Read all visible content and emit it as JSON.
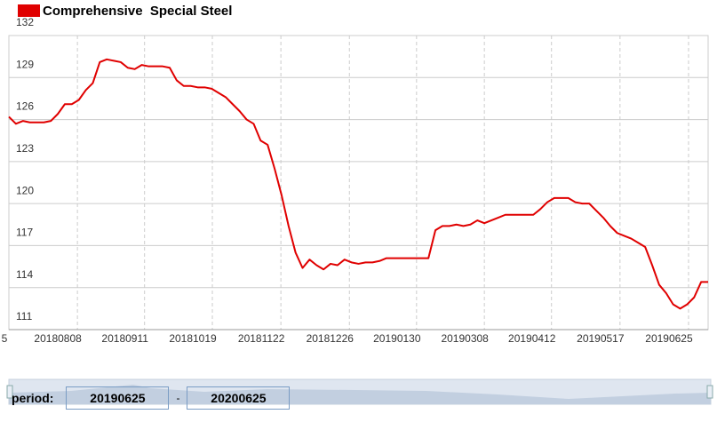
{
  "chart_data": {
    "type": "line",
    "series": [
      {
        "name": "Comprehensive  Special Steel",
        "color": "#e00000",
        "values": [
          126.2,
          125.7,
          125.9,
          125.8,
          125.8,
          125.8,
          125.9,
          126.4,
          127.1,
          127.1,
          127.4,
          128.1,
          128.6,
          130.1,
          130.3,
          130.2,
          130.1,
          129.7,
          129.6,
          129.9,
          129.8,
          129.8,
          129.8,
          129.7,
          128.8,
          128.4,
          128.4,
          128.3,
          128.3,
          128.2,
          127.9,
          127.6,
          127.1,
          126.6,
          126.0,
          125.7,
          124.5,
          124.2,
          122.5,
          120.6,
          118.4,
          116.5,
          115.4,
          116.0,
          115.6,
          115.3,
          115.7,
          115.6,
          116.0,
          115.8,
          115.7,
          115.8,
          115.8,
          115.9,
          116.1,
          116.1,
          116.1,
          116.1,
          116.1,
          116.1,
          116.1,
          118.1,
          118.4,
          118.4,
          118.5,
          118.4,
          118.5,
          118.8,
          118.6,
          118.8,
          119.0,
          119.2,
          119.2,
          119.2,
          119.2,
          119.2,
          119.6,
          120.1,
          120.4,
          120.4,
          120.4,
          120.1,
          120.0,
          120.0,
          119.5,
          119.0,
          118.4,
          117.9,
          117.7,
          117.5,
          117.2,
          116.9,
          115.6,
          114.2,
          113.6,
          112.8,
          112.5,
          112.8,
          113.3,
          114.4,
          114.4
        ]
      }
    ],
    "xlim": [
      0,
      100
    ],
    "xticks": [
      {
        "value": 0,
        "label": "5"
      },
      {
        "value": 9.8,
        "label": "20180808"
      },
      {
        "value": 19.4,
        "label": "20180911"
      },
      {
        "value": 29.1,
        "label": "20181019"
      },
      {
        "value": 38.9,
        "label": "20181122"
      },
      {
        "value": 48.7,
        "label": "20181226"
      },
      {
        "value": 58.3,
        "label": "20190130"
      },
      {
        "value": 68.0,
        "label": "20190308"
      },
      {
        "value": 77.6,
        "label": "20190412"
      },
      {
        "value": 87.4,
        "label": "20190517"
      },
      {
        "value": 97.2,
        "label": "20190625"
      }
    ],
    "ylim": [
      111,
      132
    ],
    "yticks": [
      111,
      114,
      117,
      120,
      123,
      126,
      129,
      132
    ],
    "grid": true
  },
  "period": {
    "label": "period:",
    "start": "20190625",
    "separator": "-",
    "end": "20200625"
  }
}
